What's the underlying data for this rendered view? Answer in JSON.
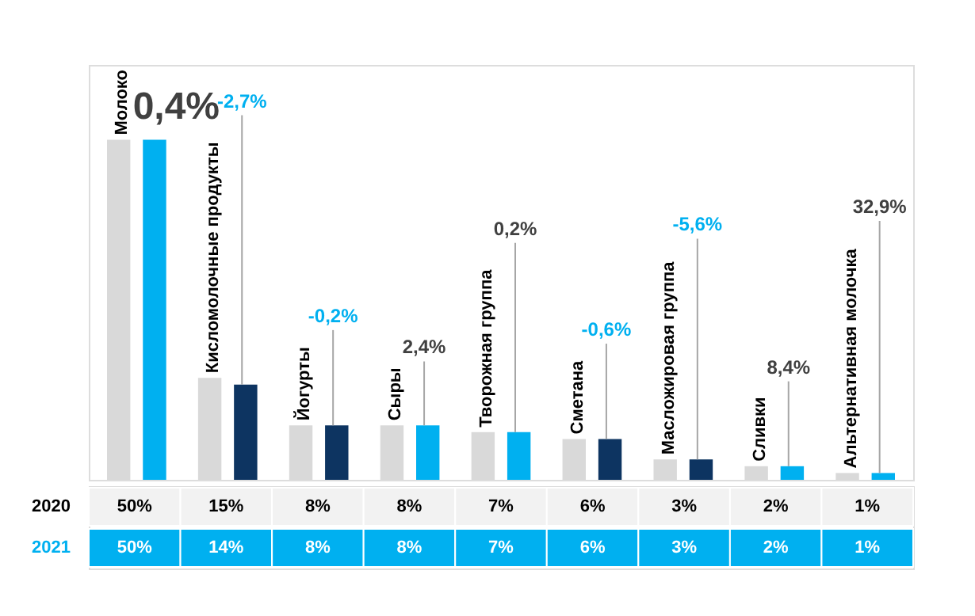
{
  "chart_data": {
    "type": "bar",
    "categories": [
      "Молоко",
      "Кисломолочные  продукты",
      "Йогурты",
      "Сыры",
      "Творожная группа",
      "Сметана",
      "Масложировая группа",
      "Сливки",
      "Альтернативная молочка"
    ],
    "series": [
      {
        "name": "2020",
        "color": "#d9d9d9",
        "values": [
          50,
          15,
          8,
          8,
          7,
          6,
          3,
          2,
          1
        ],
        "value_labels": [
          "50%",
          "15%",
          "8%",
          "8%",
          "7%",
          "6%",
          "3%",
          "2%",
          "1%"
        ]
      },
      {
        "name": "2021",
        "color": "#00b0f0",
        "colors": [
          "#00b0f0",
          "#0d3461",
          "#0d3461",
          "#00b0f0",
          "#00b0f0",
          "#0d3461",
          "#0d3461",
          "#00b0f0",
          "#00b0f0"
        ],
        "values": [
          50,
          14,
          8,
          8,
          7,
          6,
          3,
          2,
          1
        ],
        "value_labels": [
          "50%",
          "14%",
          "8%",
          "8%",
          "7%",
          "6%",
          "3%",
          "2%",
          "1%"
        ]
      }
    ],
    "annotations": [
      "0,4%",
      "-2,7%",
      "-0,2%",
      "2,4%",
      "0,2%",
      "-0,6%",
      "-5,6%",
      "8,4%",
      "32,9%"
    ]
  }
}
